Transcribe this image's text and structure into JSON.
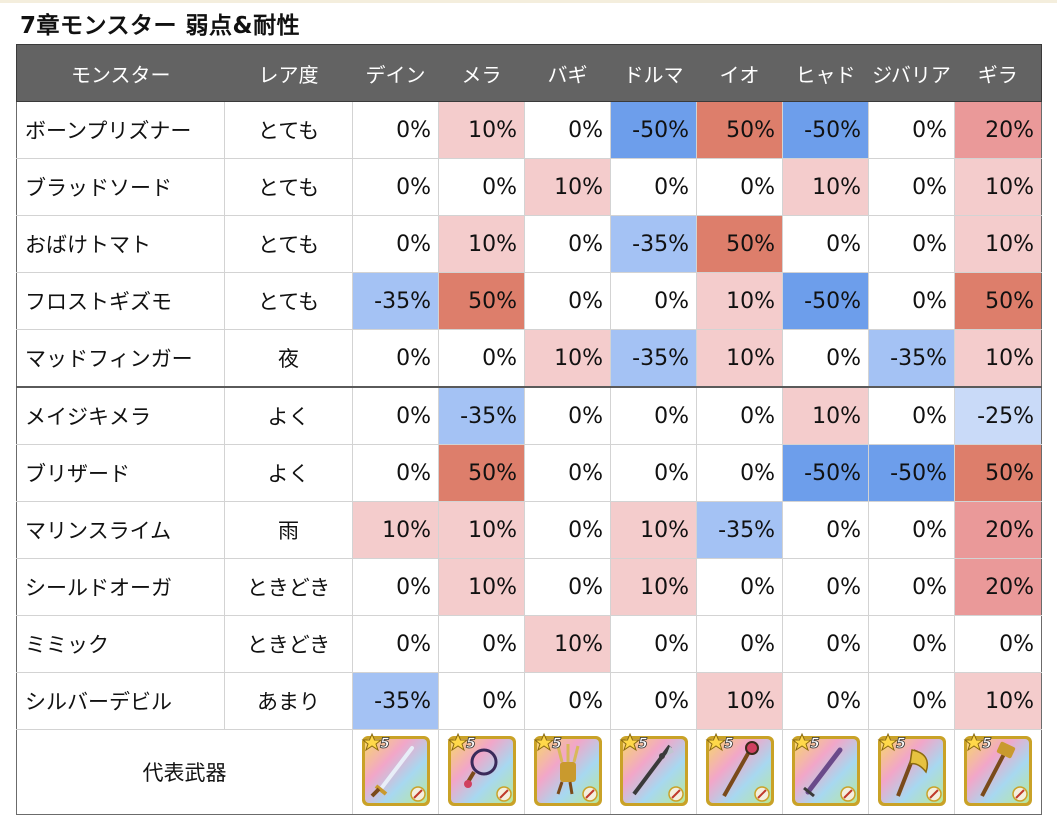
{
  "title": "7章モンスター 弱点&耐性",
  "header": [
    "モンスター",
    "レア度",
    "デイン",
    "メラ",
    "バギ",
    "ドルマ",
    "イオ",
    "ヒャド",
    "ジバリア",
    "ギラ"
  ],
  "group_break_after_row": 4,
  "rows": [
    {
      "name": "ボーンプリズナー",
      "rarity": "とても",
      "values": [
        "0%",
        "10%",
        "0%",
        "-50%",
        "50%",
        "-50%",
        "0%",
        "20%"
      ]
    },
    {
      "name": "ブラッドソード",
      "rarity": "とても",
      "values": [
        "0%",
        "0%",
        "10%",
        "0%",
        "0%",
        "10%",
        "0%",
        "10%"
      ]
    },
    {
      "name": "おばけトマト",
      "rarity": "とても",
      "values": [
        "0%",
        "10%",
        "0%",
        "-35%",
        "50%",
        "0%",
        "0%",
        "10%"
      ]
    },
    {
      "name": "フロストギズモ",
      "rarity": "とても",
      "values": [
        "-35%",
        "50%",
        "0%",
        "0%",
        "10%",
        "-50%",
        "0%",
        "50%"
      ]
    },
    {
      "name": "マッドフィンガー",
      "rarity": "夜",
      "values": [
        "0%",
        "0%",
        "10%",
        "-35%",
        "10%",
        "0%",
        "-35%",
        "10%"
      ]
    },
    {
      "name": "メイジキメラ",
      "rarity": "よく",
      "values": [
        "0%",
        "-35%",
        "0%",
        "0%",
        "0%",
        "10%",
        "0%",
        "-25%"
      ]
    },
    {
      "name": "ブリザード",
      "rarity": "よく",
      "values": [
        "0%",
        "50%",
        "0%",
        "0%",
        "0%",
        "-50%",
        "-50%",
        "50%"
      ]
    },
    {
      "name": "マリンスライム",
      "rarity": "雨",
      "values": [
        "10%",
        "10%",
        "0%",
        "10%",
        "-35%",
        "0%",
        "0%",
        "20%"
      ]
    },
    {
      "name": "シールドオーガ",
      "rarity": "ときどき",
      "values": [
        "0%",
        "10%",
        "0%",
        "10%",
        "0%",
        "0%",
        "0%",
        "20%"
      ]
    },
    {
      "name": "ミミック",
      "rarity": "ときどき",
      "values": [
        "0%",
        "0%",
        "10%",
        "0%",
        "0%",
        "0%",
        "0%",
        "0%"
      ]
    },
    {
      "name": "シルバーデビル",
      "rarity": "あまり",
      "values": [
        "-35%",
        "0%",
        "0%",
        "0%",
        "10%",
        "0%",
        "0%",
        "10%"
      ]
    }
  ],
  "value_colors": {
    "-50%": "#6d9eeb",
    "-35%": "#a4c2f4",
    "-25%": "#c9daf8",
    "0%": "#ffffff",
    "10%": "#f4cccc",
    "20%": "#ea9999",
    "50%": "#dd7e6b"
  },
  "weapon_row": {
    "label": "代表武器",
    "star_text": "5",
    "weapons": [
      {
        "icon": "sword-icon",
        "element_icon": "sword-type-icon"
      },
      {
        "icon": "whip-icon",
        "element_icon": "whip-type-icon"
      },
      {
        "icon": "claw-icon",
        "element_icon": "claw-type-icon"
      },
      {
        "icon": "spear-icon",
        "element_icon": "spear-type-icon"
      },
      {
        "icon": "staff-icon",
        "element_icon": "staff-type-icon"
      },
      {
        "icon": "dagger-icon",
        "element_icon": "sword-type-icon"
      },
      {
        "icon": "axe-icon",
        "element_icon": "axe-type-icon"
      },
      {
        "icon": "hammer-icon",
        "element_icon": "staff-type-icon"
      }
    ]
  }
}
